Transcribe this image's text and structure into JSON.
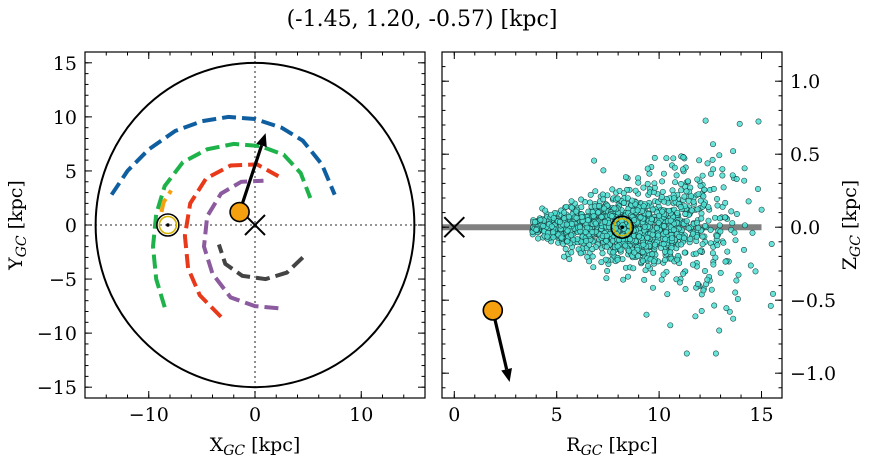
{
  "title": "(-1.45, 1.20, -0.57) [kpc]",
  "chart_data": [
    {
      "type": "scatter",
      "panel": "left",
      "xlabel": {
        "main": "X",
        "sub": "GC",
        "unit": " [kpc]"
      },
      "ylabel": {
        "main": "Y",
        "sub": "GC",
        "unit": " [kpc]"
      },
      "xlim": [
        -16,
        16
      ],
      "ylim": [
        -16,
        16
      ],
      "xticks": [
        -10,
        0,
        10
      ],
      "yticks": [
        -15,
        -10,
        -5,
        0,
        5,
        10,
        15
      ],
      "xtick_labels": [
        "−10",
        "0",
        "10"
      ],
      "ytick_labels": [
        "−15",
        "−10",
        "−5",
        "0",
        "5",
        "10",
        "15"
      ],
      "boundary_circle_radius": 15,
      "galactic_center": [
        0,
        0
      ],
      "sun_position": [
        -8.2,
        0
      ],
      "object": {
        "x": -1.45,
        "y": 1.2,
        "color": "#f5a00f"
      },
      "velocity_arrow": {
        "from": [
          -1.45,
          1.2
        ],
        "to": [
          1.0,
          8.5
        ]
      },
      "spiral_arms": [
        {
          "color": "#0f5fa0",
          "points": [
            [
              -13.5,
              2.8
            ],
            [
              -12,
              5.0
            ],
            [
              -10,
              7.0
            ],
            [
              -7.5,
              8.7
            ],
            [
              -5,
              9.6
            ],
            [
              -2.5,
              10.0
            ],
            [
              0,
              9.8
            ],
            [
              2.5,
              9.0
            ],
            [
              4.5,
              7.8
            ],
            [
              6.3,
              5.6
            ],
            [
              7.5,
              2.8
            ]
          ]
        },
        {
          "color": "#1db34a",
          "points": [
            [
              -8.5,
              -7.6
            ],
            [
              -9.3,
              -5
            ],
            [
              -9.6,
              -2
            ],
            [
              -9.3,
              1
            ],
            [
              -8.5,
              3.6
            ],
            [
              -6.8,
              5.8
            ],
            [
              -4.5,
              7.0
            ],
            [
              -2,
              7.5
            ],
            [
              0.5,
              7.3
            ],
            [
              2.7,
              6.5
            ],
            [
              4.3,
              4.8
            ],
            [
              5.2,
              2.5
            ]
          ]
        },
        {
          "color": "#f5a00f",
          "points": [
            [
              -8.8,
              1.2
            ],
            [
              -8.6,
              2.1
            ],
            [
              -7.9,
              3.2
            ]
          ]
        },
        {
          "color": "#e8391b",
          "points": [
            [
              -3.2,
              -8.5
            ],
            [
              -5.2,
              -6.5
            ],
            [
              -6.3,
              -4
            ],
            [
              -6.6,
              -1
            ],
            [
              -6.1,
              2
            ],
            [
              -4.6,
              4.3
            ],
            [
              -2.3,
              5.5
            ],
            [
              0.2,
              5.6
            ],
            [
              2.2,
              4.5
            ]
          ]
        },
        {
          "color": "#8c5a9e",
          "points": [
            [
              2.2,
              -7.7
            ],
            [
              0,
              -7.5
            ],
            [
              -2.3,
              -6.7
            ],
            [
              -4.0,
              -4.5
            ],
            [
              -4.8,
              -2
            ],
            [
              -4.5,
              0.8
            ],
            [
              -3.2,
              2.9
            ],
            [
              -1.3,
              4.0
            ],
            [
              0.8,
              4.1
            ]
          ]
        },
        {
          "color": "#444444",
          "points": [
            [
              4.5,
              -3.0
            ],
            [
              3.0,
              -4.4
            ],
            [
              1.0,
              -5.0
            ],
            [
              -1.2,
              -4.7
            ],
            [
              -2.8,
              -3.6
            ],
            [
              -3.4,
              -1.8
            ]
          ]
        }
      ]
    },
    {
      "type": "scatter",
      "panel": "right",
      "xlabel": {
        "main": "R",
        "sub": "GC",
        "unit": " [kpc]"
      },
      "ylabel": {
        "main": "Z",
        "sub": "GC",
        "unit": " [kpc]"
      },
      "xlim": [
        -0.6,
        16
      ],
      "ylim": [
        -1.17,
        1.2
      ],
      "xticks": [
        0,
        5,
        10,
        15
      ],
      "yticks": [
        -1.0,
        -0.5,
        0.0,
        0.5,
        1.0
      ],
      "xtick_labels": [
        "0",
        "5",
        "10",
        "15"
      ],
      "ytick_labels": [
        "−1.0",
        "−0.5",
        "0.0",
        "0.5",
        "1.0"
      ],
      "plane_line": {
        "x0": -0.6,
        "x1": 15.0,
        "z": 0,
        "color": "#808080"
      },
      "galactic_center": [
        0,
        0
      ],
      "sun_position": [
        8.2,
        0
      ],
      "object": {
        "R": 1.88,
        "Z": -0.57,
        "color": "#f5a00f"
      },
      "velocity_arrow": {
        "from": [
          1.88,
          -0.57
        ],
        "to": [
          2.7,
          -1.06
        ]
      },
      "population": {
        "color": "#4de0d4",
        "count": 1400,
        "description_hidden": true
      }
    }
  ]
}
